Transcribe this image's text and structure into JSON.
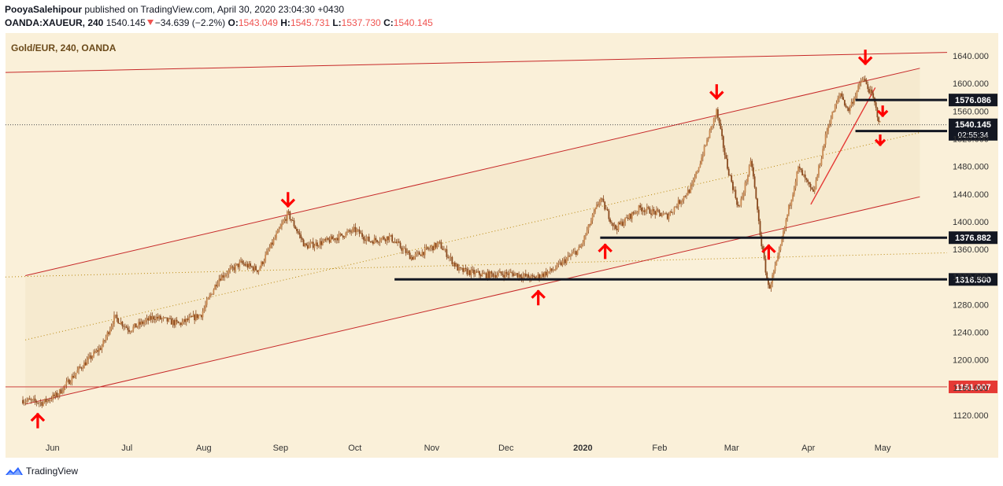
{
  "header": {
    "publisher": "PooyaSalehipour",
    "published_text": "published on TradingView.com, April 30, 2020 23:04:30 +0430",
    "symbol": "OANDA:XAUEUR, 240",
    "last": "1540.145",
    "change": "−34.639 (−2.2%)",
    "open_label": "O:",
    "open": "1543.049",
    "high_label": "H:",
    "high": "1545.731",
    "low_label": "L:",
    "low": "1537.730",
    "close_label": "C:",
    "close": "1540.145"
  },
  "footer": {
    "brand": "TradingView",
    "logo_icon": "tradingview-logo-icon"
  },
  "colors": {
    "background": "#faf0d9",
    "bar_fill": "#f2e6c6",
    "candle": "#8a4a1e",
    "trendline": "#c62828",
    "horizontal": "#131722",
    "arrow": "#ff0000",
    "midline": "#b8860b"
  },
  "chart_data": {
    "type": "candlestick",
    "title": "Gold/EUR, 240, OANDA",
    "x_ticks": [
      "Jun",
      "Jul",
      "Aug",
      "Sep",
      "Oct",
      "Nov",
      "Dec",
      "2020",
      "Feb",
      "Mar",
      "Apr",
      "May"
    ],
    "y_ticks": [
      1120,
      1160,
      1200,
      1240,
      1280,
      1320,
      1360,
      1400,
      1440,
      1480,
      1520,
      1560,
      1600,
      1640
    ],
    "ylim": [
      1094,
      1670
    ],
    "price_path": [
      {
        "t": "2019-05-20",
        "p": 1142
      },
      {
        "t": "2019-05-28",
        "p": 1138
      },
      {
        "t": "2019-06-03",
        "p": 1150
      },
      {
        "t": "2019-06-12",
        "p": 1188
      },
      {
        "t": "2019-06-21",
        "p": 1220
      },
      {
        "t": "2019-06-26",
        "p": 1262
      },
      {
        "t": "2019-07-02",
        "p": 1244
      },
      {
        "t": "2019-07-12",
        "p": 1262
      },
      {
        "t": "2019-07-22",
        "p": 1252
      },
      {
        "t": "2019-07-31",
        "p": 1266
      },
      {
        "t": "2019-08-07",
        "p": 1318
      },
      {
        "t": "2019-08-16",
        "p": 1340
      },
      {
        "t": "2019-08-23",
        "p": 1330
      },
      {
        "t": "2019-09-04",
        "p": 1412
      },
      {
        "t": "2019-09-11",
        "p": 1364
      },
      {
        "t": "2019-09-20",
        "p": 1372
      },
      {
        "t": "2019-10-01",
        "p": 1388
      },
      {
        "t": "2019-10-07",
        "p": 1372
      },
      {
        "t": "2019-10-15",
        "p": 1378
      },
      {
        "t": "2019-10-24",
        "p": 1348
      },
      {
        "t": "2019-11-04",
        "p": 1368
      },
      {
        "t": "2019-11-12",
        "p": 1330
      },
      {
        "t": "2019-11-22",
        "p": 1323
      },
      {
        "t": "2019-12-04",
        "p": 1325
      },
      {
        "t": "2019-12-12",
        "p": 1318
      },
      {
        "t": "2019-12-20",
        "p": 1330
      },
      {
        "t": "2019-12-31",
        "p": 1362
      },
      {
        "t": "2020-01-08",
        "p": 1434
      },
      {
        "t": "2020-01-14",
        "p": 1390
      },
      {
        "t": "2020-01-24",
        "p": 1420
      },
      {
        "t": "2020-02-04",
        "p": 1408
      },
      {
        "t": "2020-02-14",
        "p": 1450
      },
      {
        "t": "2020-02-24",
        "p": 1560
      },
      {
        "t": "2020-02-28",
        "p": 1484
      },
      {
        "t": "2020-03-04",
        "p": 1418
      },
      {
        "t": "2020-03-09",
        "p": 1488
      },
      {
        "t": "2020-03-13",
        "p": 1370
      },
      {
        "t": "2020-03-16",
        "p": 1302
      },
      {
        "t": "2020-03-20",
        "p": 1350
      },
      {
        "t": "2020-03-24",
        "p": 1418
      },
      {
        "t": "2020-03-28",
        "p": 1478
      },
      {
        "t": "2020-04-03",
        "p": 1440
      },
      {
        "t": "2020-04-09",
        "p": 1540
      },
      {
        "t": "2020-04-14",
        "p": 1586
      },
      {
        "t": "2020-04-17",
        "p": 1560
      },
      {
        "t": "2020-04-23",
        "p": 1608
      },
      {
        "t": "2020-04-27",
        "p": 1580
      },
      {
        "t": "2020-04-30",
        "p": 1540
      }
    ],
    "horizontal_levels": [
      {
        "label": "1576.086",
        "start": "2020-04-20"
      },
      {
        "label": "1531.185",
        "start": "2020-04-20"
      },
      {
        "label": "1376.882",
        "start": "2020-01-08"
      },
      {
        "label": "1316.500",
        "start": "2019-10-17"
      },
      {
        "label": "1161.007",
        "start": "2019-05-13",
        "style": "red-thin"
      }
    ],
    "current_price": {
      "value": 1540.145,
      "label": "1540.145",
      "countdown": "02:55:34"
    },
    "channel_upper": [
      {
        "t": "2019-05-21",
        "p": 1322
      },
      {
        "t": "2020-05-16",
        "p": 1622
      }
    ],
    "channel_lower": [
      {
        "t": "2019-05-21",
        "p": 1136
      },
      {
        "t": "2020-05-16",
        "p": 1436
      }
    ],
    "channel_mid": [
      {
        "t": "2019-05-21",
        "p": 1229
      },
      {
        "t": "2020-05-16",
        "p": 1529
      }
    ],
    "outer_upper": [
      {
        "t": "2019-05-13",
        "p": 1616
      },
      {
        "t": "2020-05-27",
        "p": 1645
      }
    ],
    "outer_mid": [
      {
        "t": "2019-05-13",
        "p": 1320
      },
      {
        "t": "2020-05-27",
        "p": 1355
      }
    ],
    "local_trend": [
      {
        "t": "2020-04-02",
        "p": 1425
      },
      {
        "t": "2020-04-28",
        "p": 1594
      }
    ],
    "arrows": [
      {
        "t": "2019-05-26",
        "p": 1112,
        "dir": "up"
      },
      {
        "t": "2019-09-04",
        "p": 1432,
        "dir": "down"
      },
      {
        "t": "2019-12-14",
        "p": 1290,
        "dir": "up"
      },
      {
        "t": "2020-01-10",
        "p": 1357,
        "dir": "up"
      },
      {
        "t": "2020-02-24",
        "p": 1588,
        "dir": "down"
      },
      {
        "t": "2020-03-16",
        "p": 1356,
        "dir": "up"
      },
      {
        "t": "2020-04-24",
        "p": 1638,
        "dir": "down"
      },
      {
        "t": "2020-05-01",
        "p": 1560,
        "dir": "down-small"
      },
      {
        "t": "2020-04-30",
        "p": 1518,
        "dir": "down-small"
      }
    ]
  }
}
